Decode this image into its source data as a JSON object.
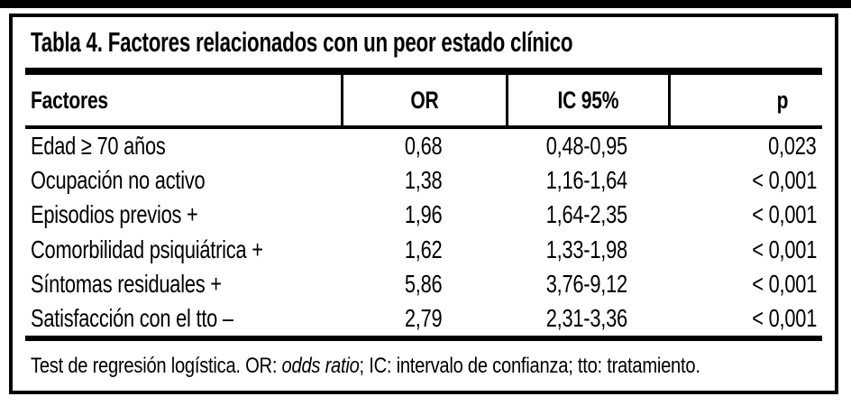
{
  "colors": {
    "ink": "#000000",
    "paper": "#ffffff"
  },
  "table": {
    "title": "Tabla 4. Factores relacionados con un peor estado clínico",
    "columns": [
      "Factores",
      "OR",
      "IC 95%",
      "p"
    ],
    "rows": [
      {
        "factor": "Edad ≥ 70 años",
        "or": "0,68",
        "ic": "0,48-0,95",
        "p": "0,023"
      },
      {
        "factor": "Ocupación no activo",
        "or": "1,38",
        "ic": "1,16-1,64",
        "p": "< 0,001"
      },
      {
        "factor": "Episodios previos +",
        "or": "1,96",
        "ic": "1,64-2,35",
        "p": "< 0,001"
      },
      {
        "factor": "Comorbilidad psiquiátrica +",
        "or": "1,62",
        "ic": "1,33-1,98",
        "p": "< 0,001"
      },
      {
        "factor": "Síntomas residuales +",
        "or": "5,86",
        "ic": "3,76-9,12",
        "p": "< 0,001"
      },
      {
        "factor": "Satisfacción con el tto –",
        "or": "2,79",
        "ic": "2,31-3,36",
        "p": "< 0,001"
      }
    ],
    "footnote": {
      "prefix": "Test de regresión logística. OR: ",
      "italic": "odds ratio",
      "suffix": "; IC: intervalo de confianza; tto: tratamiento."
    }
  }
}
